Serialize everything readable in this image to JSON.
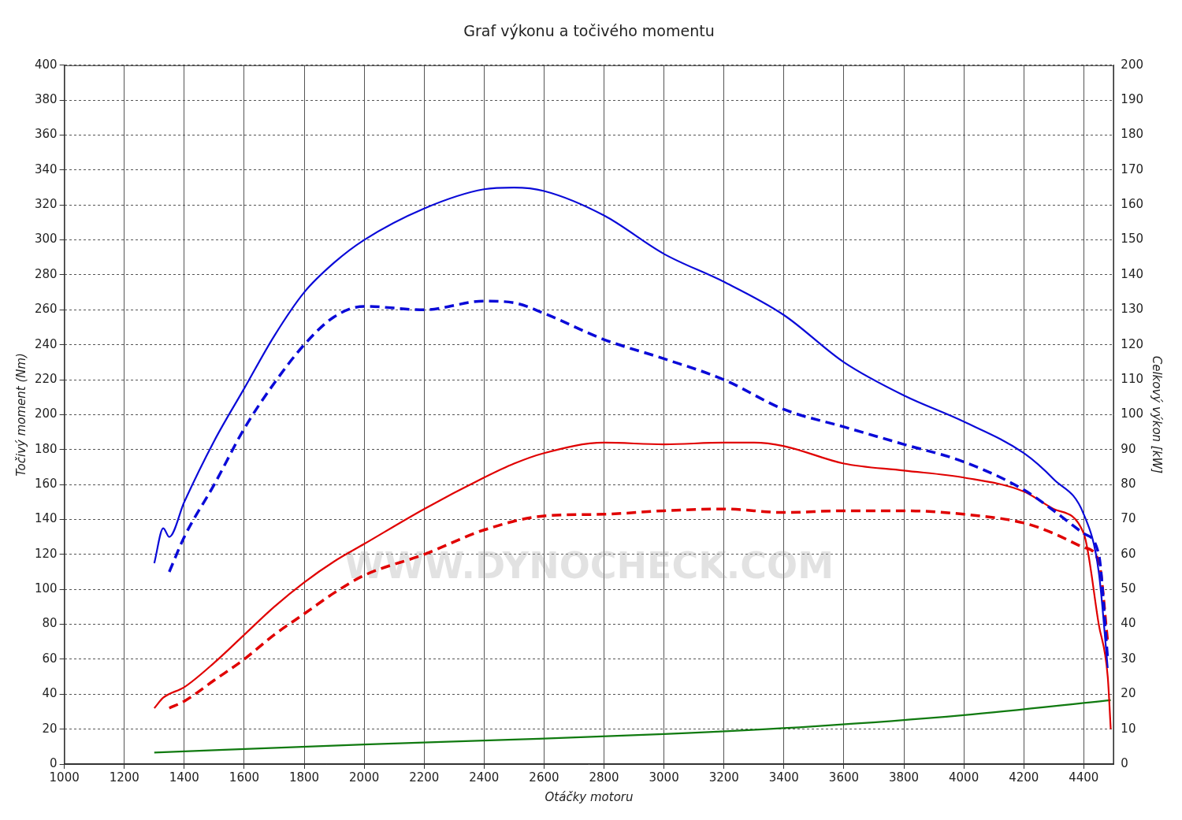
{
  "chart_data": {
    "type": "line",
    "title": "Graf výkonu a točivého momentu",
    "x_label": "Otáčky motoru",
    "y_label": "Točivý moment (Nm)",
    "y2_label": "Celkový výkon [kW]",
    "annotations": [
      {
        "text": "WWW.DYNOCHECK.COM"
      }
    ],
    "xlim": [
      1000,
      4500
    ],
    "xticks": [
      1000,
      1200,
      1400,
      1600,
      1800,
      2000,
      2200,
      2400,
      2600,
      2800,
      3000,
      3200,
      3400,
      3600,
      3800,
      4000,
      4200,
      4400
    ],
    "ylim": [
      0,
      400
    ],
    "yticks": [
      0,
      20,
      40,
      60,
      80,
      100,
      120,
      140,
      160,
      180,
      200,
      220,
      240,
      260,
      280,
      300,
      320,
      340,
      360,
      380,
      400
    ],
    "y2lim": [
      0,
      200
    ],
    "y2ticks": [
      0,
      10,
      20,
      30,
      40,
      50,
      60,
      70,
      80,
      90,
      100,
      110,
      120,
      130,
      140,
      150,
      160,
      170,
      180,
      190,
      200
    ],
    "grid": true,
    "series": [
      {
        "color": "#0a0ad8",
        "line_style": "solid",
        "x": [
          1300,
          1330,
          1350,
          1400,
          1500,
          1600,
          1700,
          1800,
          1900,
          2000,
          2200,
          2400,
          2500,
          2600,
          2800,
          3000,
          3200,
          3400,
          3600,
          3800,
          4000,
          4200,
          4300,
          4400,
          4450,
          4480
        ],
        "values": [
          115,
          135,
          130,
          150,
          185,
          215,
          245,
          270,
          287,
          300,
          318,
          329,
          330,
          328,
          314,
          292,
          276,
          257,
          230,
          211,
          196,
          178,
          163,
          143,
          110,
          55
        ]
      },
      {
        "color": "#0a0ad8",
        "line_style": "dashed",
        "x": [
          1350,
          1400,
          1500,
          1600,
          1700,
          1800,
          1900,
          2000,
          2200,
          2400,
          2500,
          2600,
          2800,
          3000,
          3200,
          3400,
          3600,
          3800,
          4000,
          4200,
          4300,
          4400,
          4450,
          4480
        ],
        "values": [
          110,
          130,
          160,
          192,
          218,
          240,
          256,
          262,
          260,
          265,
          264,
          258,
          243,
          232,
          220,
          203,
          193,
          183,
          173,
          157,
          145,
          132,
          120,
          60
        ]
      },
      {
        "color": "#e00000",
        "line_style": "solid",
        "axis": "y2",
        "x": [
          1300,
          1330,
          1400,
          1500,
          1600,
          1700,
          1800,
          1900,
          2000,
          2200,
          2400,
          2500,
          2600,
          2800,
          3000,
          3200,
          3300,
          3400,
          3600,
          3800,
          4000,
          4200,
          4300,
          4400,
          4450,
          4480,
          4490
        ],
        "values": [
          16,
          19,
          22,
          29,
          37,
          45,
          52,
          58,
          63,
          73,
          82,
          86,
          89,
          92,
          91.5,
          92,
          92,
          91,
          86,
          84,
          82,
          78,
          73,
          66,
          40,
          25,
          10
        ]
      },
      {
        "color": "#e00000",
        "line_style": "dashed",
        "axis": "y2",
        "x": [
          1350,
          1400,
          1500,
          1600,
          1700,
          1800,
          1900,
          2000,
          2200,
          2400,
          2600,
          2800,
          3000,
          3200,
          3400,
          3600,
          3800,
          4000,
          4200,
          4300,
          4400,
          4450,
          4480
        ],
        "values": [
          16,
          18,
          24,
          30,
          37,
          43,
          49,
          54,
          60,
          67,
          71,
          71.5,
          72.5,
          73,
          72,
          72.5,
          72.5,
          71.5,
          69,
          66,
          62,
          58,
          35
        ]
      },
      {
        "color": "#107a10",
        "line_style": "solid",
        "axis": "y2",
        "x": [
          1300,
          2000,
          2500,
          3000,
          3500,
          4000,
          4490
        ],
        "values": [
          3.3,
          5.6,
          7,
          8.6,
          10.8,
          14,
          18.3
        ]
      }
    ]
  }
}
